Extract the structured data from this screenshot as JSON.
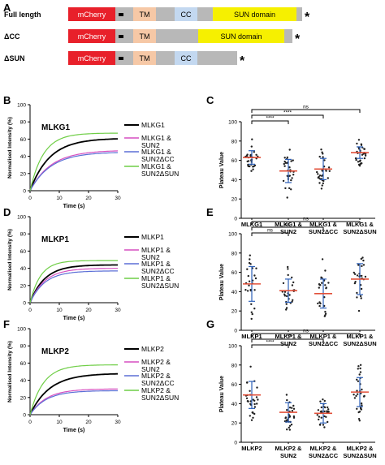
{
  "figure": {
    "panel_letters": [
      "A",
      "B",
      "C",
      "D",
      "E",
      "F",
      "G"
    ],
    "constructs": [
      {
        "label": "Full length",
        "domains": [
          {
            "name": "mCherry",
            "color": "#e8202a",
            "text_color": "#ffffff"
          },
          {
            "name": "TM",
            "color": "#f6c8a6",
            "text_color": "#000000"
          },
          {
            "name": "CC",
            "color": "#c3d8f0",
            "text_color": "#000000"
          },
          {
            "name": "SUN domain",
            "color": "#f6f000",
            "text_color": "#000000"
          }
        ],
        "terminal_mark": "*"
      },
      {
        "label": "ΔCC",
        "domains": [
          {
            "name": "mCherry",
            "color": "#e8202a",
            "text_color": "#ffffff"
          },
          {
            "name": "TM",
            "color": "#f6c8a6",
            "text_color": "#000000"
          },
          {
            "name": "SUN domain",
            "color": "#f6f000",
            "text_color": "#000000"
          }
        ],
        "terminal_mark": "*"
      },
      {
        "label": "ΔSUN",
        "domains": [
          {
            "name": "mCherry",
            "color": "#e8202a",
            "text_color": "#ffffff"
          },
          {
            "name": "TM",
            "color": "#f6c8a6",
            "text_color": "#000000"
          },
          {
            "name": "CC",
            "color": "#c3d8f0",
            "text_color": "#000000"
          }
        ],
        "terminal_mark": "*"
      }
    ],
    "rows": [
      {
        "recovery_letter": "B",
        "plateau_letter": "C",
        "protein": "MLKG1"
      },
      {
        "recovery_letter": "D",
        "plateau_letter": "E",
        "protein": "MLKP1"
      },
      {
        "recovery_letter": "F",
        "plateau_letter": "G",
        "protein": "MLKP2"
      }
    ]
  },
  "chart_data": [
    {
      "type": "line",
      "title": "MLKG1",
      "xlabel": "Time (s)",
      "ylabel": "Normalised Intensity (%)",
      "xlim": [
        0,
        30
      ],
      "ylim": [
        0,
        100
      ],
      "xticks": [
        0,
        10,
        20,
        30
      ],
      "yticks": [
        0,
        20,
        40,
        60,
        80,
        100
      ],
      "legend": "right",
      "series": [
        {
          "name": "MLKG1",
          "color": "#000000",
          "plateau": 61,
          "k": 0.15
        },
        {
          "name": "MLKG1 & SUN2",
          "color": "#d64fc0",
          "plateau": 47,
          "k": 0.14
        },
        {
          "name": "MLKG1 & SUN2ΔCC",
          "color": "#5b6fd6",
          "plateau": 45,
          "k": 0.14
        },
        {
          "name": "MLKG1 & SUN2ΔSUN",
          "color": "#6fce46",
          "plateau": 67,
          "k": 0.22
        }
      ]
    },
    {
      "type": "scatter",
      "xlabel": "",
      "ylabel": "Plateau Value",
      "ylim": [
        0,
        100
      ],
      "yticks": [
        0,
        20,
        40,
        60,
        80,
        100
      ],
      "categories": [
        "MLKG1",
        "MLKG1 & SUN2",
        "MLKG1 & SUN2ΔCC",
        "MLKG1 & SUN2ΔSUN"
      ],
      "means": [
        63,
        49,
        51,
        68
      ],
      "sd": [
        7,
        12,
        11,
        6
      ],
      "n": 30,
      "spread": [
        8,
        13,
        12,
        7
      ],
      "significance": [
        {
          "from": 0,
          "to": 1,
          "label": "****"
        },
        {
          "from": 0,
          "to": 2,
          "label": "****"
        },
        {
          "from": 0,
          "to": 3,
          "label": "ns"
        }
      ]
    },
    {
      "type": "line",
      "title": "MLKP1",
      "xlabel": "Time (s)",
      "ylabel": "Normalised Intensity (%)",
      "xlim": [
        0,
        30
      ],
      "ylim": [
        0,
        100
      ],
      "xticks": [
        0,
        10,
        20,
        30
      ],
      "yticks": [
        0,
        20,
        40,
        60,
        80,
        100
      ],
      "legend": "right",
      "series": [
        {
          "name": "MLKP1",
          "color": "#000000",
          "plateau": 44,
          "k": 0.2
        },
        {
          "name": "MLKP1 & SUN2",
          "color": "#d64fc0",
          "plateau": 40,
          "k": 0.2
        },
        {
          "name": "MLKP1 & SUN2ΔCC",
          "color": "#5b6fd6",
          "plateau": 37,
          "k": 0.2
        },
        {
          "name": "MLKP1 & SUN2ΔSUN",
          "color": "#6fce46",
          "plateau": 49,
          "k": 0.28
        }
      ]
    },
    {
      "type": "scatter",
      "xlabel": "",
      "ylabel": "Plateau Value",
      "ylim": [
        0,
        100
      ],
      "yticks": [
        0,
        20,
        40,
        60,
        80,
        100
      ],
      "categories": [
        "MLKP1",
        "MLKP1 & SUN2",
        "MLKP1 & SUN2ΔCC",
        "MLKP1 & SUN2ΔSUN"
      ],
      "means": [
        48,
        41,
        38,
        53
      ],
      "sd": [
        18,
        12,
        15,
        16
      ],
      "n": 25,
      "spread": [
        18,
        12,
        16,
        16
      ],
      "significance": [
        {
          "from": 0,
          "to": 1,
          "label": "ns"
        },
        {
          "from": 0,
          "to": 2,
          "label": "ns"
        },
        {
          "from": 0,
          "to": 3,
          "label": "ns"
        }
      ]
    },
    {
      "type": "line",
      "title": "MLKP2",
      "xlabel": "Time (s)",
      "ylabel": "Normalised Intensity (%)",
      "xlim": [
        0,
        30
      ],
      "ylim": [
        0,
        100
      ],
      "xticks": [
        0,
        10,
        20,
        30
      ],
      "yticks": [
        0,
        20,
        40,
        60,
        80,
        100
      ],
      "legend": "right",
      "series": [
        {
          "name": "MLKP2",
          "color": "#000000",
          "plateau": 48,
          "k": 0.15
        },
        {
          "name": "MLKP2 & SUN2",
          "color": "#d64fc0",
          "plateau": 30,
          "k": 0.18
        },
        {
          "name": "MLKP2 & SUN2ΔCC",
          "color": "#5b6fd6",
          "plateau": 28,
          "k": 0.18
        },
        {
          "name": "MLKP2 & SUN2ΔSUN",
          "color": "#6fce46",
          "plateau": 58,
          "k": 0.22
        }
      ]
    },
    {
      "type": "scatter",
      "xlabel": "",
      "ylabel": "Plateau Value",
      "ylim": [
        0,
        100
      ],
      "yticks": [
        0,
        20,
        40,
        60,
        80,
        100
      ],
      "categories": [
        "MLKP2",
        "MLKP2 & SUN2",
        "MLKP2 & SUN2ΔCC",
        "MLKP2 & SUN2ΔSUN"
      ],
      "means": [
        49,
        31,
        30,
        52
      ],
      "sd": [
        14,
        10,
        10,
        15
      ],
      "n": 30,
      "spread": [
        14,
        10,
        10,
        15
      ],
      "significance": [
        {
          "from": 0,
          "to": 1,
          "label": "****"
        },
        {
          "from": 0,
          "to": 2,
          "label": "****"
        },
        {
          "from": 0,
          "to": 3,
          "label": "ns"
        }
      ]
    }
  ]
}
